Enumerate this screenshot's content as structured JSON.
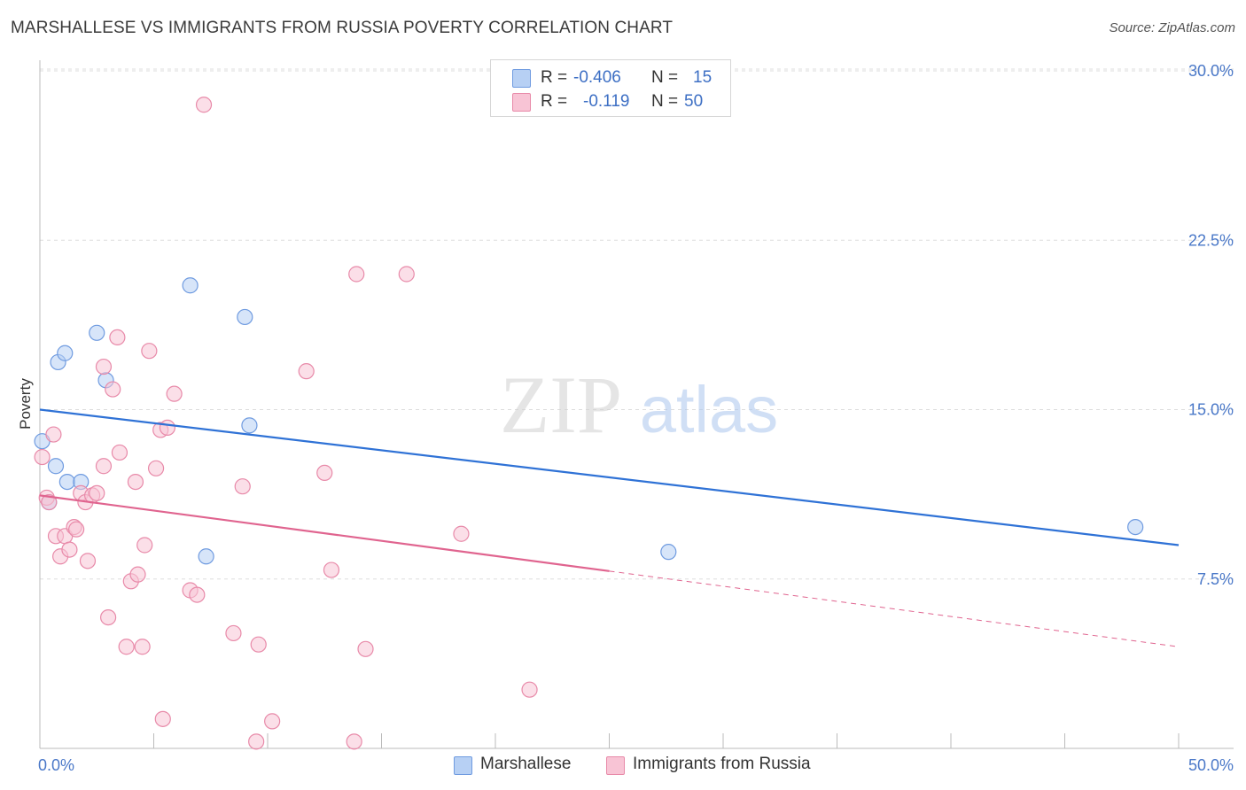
{
  "title": "MARSHALLESE VS IMMIGRANTS FROM RUSSIA POVERTY CORRELATION CHART",
  "source": "Source: ZipAtlas.com",
  "watermark": {
    "zip": "ZIP",
    "atlas": "atlas"
  },
  "legend": {
    "rows": [
      {
        "r_label": "R =",
        "r_value": "-0.406",
        "n_label": "N =",
        "n_value": "15"
      },
      {
        "r_label": "R =",
        "r_value": "-0.119",
        "n_label": "N =",
        "n_value": "50"
      }
    ]
  },
  "bottom_legend": [
    {
      "label": "Marshallese"
    },
    {
      "label": "Immigrants from Russia"
    }
  ],
  "colors": {
    "blue_fill": "#b7d0f4",
    "blue_stroke": "#6f9be0",
    "blue_line": "#2f72d6",
    "pink_fill": "#f8c4d5",
    "pink_stroke": "#e88aa9",
    "pink_line": "#e0648f",
    "grid": "#dddddd",
    "axis": "#bbbbbb",
    "tick_text": "#4a78c8"
  },
  "chart_data": {
    "type": "scatter",
    "title": "MARSHALLESE VS IMMIGRANTS FROM RUSSIA POVERTY CORRELATION CHART",
    "xlabel": "",
    "ylabel": "Poverty",
    "xlim": [
      0,
      50
    ],
    "ylim": [
      0,
      31
    ],
    "x_tick_labels": [
      {
        "value": 0,
        "label": "0.0%"
      },
      {
        "value": 50,
        "label": "50.0%"
      }
    ],
    "y_tick_labels": [
      {
        "value": 7.5,
        "label": "7.5%"
      },
      {
        "value": 15,
        "label": "15.0%"
      },
      {
        "value": 22.5,
        "label": "22.5%"
      },
      {
        "value": 30,
        "label": "30.0%"
      }
    ],
    "x_minor_ticks": [
      0,
      5,
      10,
      15,
      20,
      25,
      30,
      35,
      40,
      45,
      50
    ],
    "series": [
      {
        "name": "Marshallese",
        "color": "blue",
        "r": -0.406,
        "n": 15,
        "points": [
          [
            0.1,
            13.6
          ],
          [
            0.4,
            10.9
          ],
          [
            0.7,
            12.5
          ],
          [
            0.8,
            17.1
          ],
          [
            1.1,
            17.5
          ],
          [
            1.2,
            11.8
          ],
          [
            1.8,
            11.8
          ],
          [
            2.5,
            18.4
          ],
          [
            2.9,
            16.3
          ],
          [
            6.6,
            20.5
          ],
          [
            7.3,
            8.5
          ],
          [
            9.0,
            19.1
          ],
          [
            9.2,
            14.3
          ],
          [
            27.6,
            8.7
          ],
          [
            48.1,
            9.8
          ]
        ],
        "trend": {
          "x1": 0,
          "y1": 15.0,
          "x2": 50,
          "y2": 9.0,
          "dash_from": null
        }
      },
      {
        "name": "Immigrants from Russia",
        "color": "pink",
        "r": -0.119,
        "n": 50,
        "points": [
          [
            0.1,
            12.9
          ],
          [
            0.3,
            11.1
          ],
          [
            0.4,
            10.9
          ],
          [
            0.6,
            13.9
          ],
          [
            0.7,
            9.4
          ],
          [
            0.9,
            8.5
          ],
          [
            1.1,
            9.4
          ],
          [
            1.3,
            8.8
          ],
          [
            1.5,
            9.8
          ],
          [
            1.6,
            9.7
          ],
          [
            1.8,
            11.3
          ],
          [
            2.0,
            10.9
          ],
          [
            2.1,
            8.3
          ],
          [
            2.3,
            11.2
          ],
          [
            2.5,
            11.3
          ],
          [
            2.8,
            12.5
          ],
          [
            2.8,
            16.9
          ],
          [
            3.0,
            5.8
          ],
          [
            3.2,
            15.9
          ],
          [
            3.4,
            18.2
          ],
          [
            3.5,
            13.1
          ],
          [
            3.8,
            4.5
          ],
          [
            4.0,
            7.4
          ],
          [
            4.2,
            11.8
          ],
          [
            4.3,
            7.7
          ],
          [
            4.5,
            4.5
          ],
          [
            4.6,
            9.0
          ],
          [
            4.8,
            17.6
          ],
          [
            5.1,
            12.4
          ],
          [
            5.3,
            14.1
          ],
          [
            5.4,
            1.3
          ],
          [
            5.6,
            14.2
          ],
          [
            5.9,
            15.7
          ],
          [
            6.6,
            7.0
          ],
          [
            6.9,
            6.8
          ],
          [
            7.2,
            28.5
          ],
          [
            8.5,
            5.1
          ],
          [
            8.9,
            11.6
          ],
          [
            9.5,
            0.3
          ],
          [
            9.6,
            4.6
          ],
          [
            10.2,
            1.2
          ],
          [
            11.7,
            16.7
          ],
          [
            12.5,
            12.2
          ],
          [
            12.8,
            7.9
          ],
          [
            13.8,
            0.3
          ],
          [
            13.9,
            21.0
          ],
          [
            14.3,
            4.4
          ],
          [
            16.1,
            21.0
          ],
          [
            18.5,
            9.5
          ],
          [
            21.5,
            2.6
          ]
        ],
        "trend": {
          "x1": 0,
          "y1": 11.2,
          "x2": 50,
          "y2": 4.5,
          "dash_from": 25
        }
      }
    ]
  }
}
